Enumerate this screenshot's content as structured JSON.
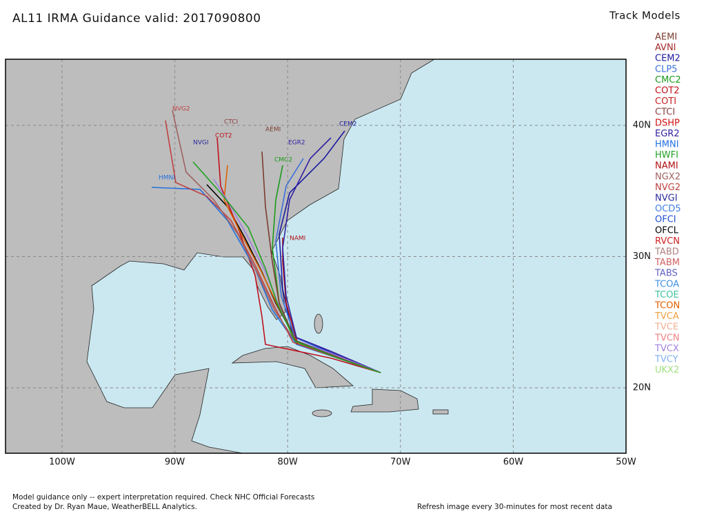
{
  "header": {
    "title": "AL11 IRMA Guidance valid: 2017090800"
  },
  "legend": {
    "title": "Track Models",
    "items": [
      {
        "name": "AEMI",
        "color": "#7a3b2e"
      },
      {
        "name": "AVNI",
        "color": "#a52a2a"
      },
      {
        "name": "CEM2",
        "color": "#1a1aa0"
      },
      {
        "name": "CLP5",
        "color": "#3a6fd8"
      },
      {
        "name": "CMC2",
        "color": "#1a9a1a"
      },
      {
        "name": "COT2",
        "color": "#c0101a"
      },
      {
        "name": "COTI",
        "color": "#c82020"
      },
      {
        "name": "CTCI",
        "color": "#8b4040"
      },
      {
        "name": "DSHP",
        "color": "#d01010"
      },
      {
        "name": "EGR2",
        "color": "#3020a0"
      },
      {
        "name": "HMNI",
        "color": "#2070e0"
      },
      {
        "name": "HWFI",
        "color": "#20a020"
      },
      {
        "name": "NAMI",
        "color": "#b01010"
      },
      {
        "name": "NGX2",
        "color": "#a06060"
      },
      {
        "name": "NVG2",
        "color": "#c04040"
      },
      {
        "name": "NVGI",
        "color": "#2a2a9a"
      },
      {
        "name": "OCD5",
        "color": "#4080e0"
      },
      {
        "name": "OFCI",
        "color": "#2050d0"
      },
      {
        "name": "OFCL",
        "color": "#000000"
      },
      {
        "name": "RVCN",
        "color": "#d02020"
      },
      {
        "name": "TABD",
        "color": "#b08080"
      },
      {
        "name": "TABM",
        "color": "#d06060"
      },
      {
        "name": "TABS",
        "color": "#6060c0"
      },
      {
        "name": "TCOA",
        "color": "#4090e0"
      },
      {
        "name": "TCOE",
        "color": "#40c0a0"
      },
      {
        "name": "TCON",
        "color": "#e06000"
      },
      {
        "name": "TVCA",
        "color": "#f0a040"
      },
      {
        "name": "TVCE",
        "color": "#f0b090"
      },
      {
        "name": "TVCN",
        "color": "#f08080"
      },
      {
        "name": "TVCX",
        "color": "#a080e0"
      },
      {
        "name": "TVCY",
        "color": "#80b0f0"
      },
      {
        "name": "UKX2",
        "color": "#a0e080"
      }
    ]
  },
  "map": {
    "lon_labels": [
      "100W",
      "90W",
      "80W",
      "70W",
      "60W",
      "50W"
    ],
    "lat_labels": [
      "40N",
      "30N",
      "20N"
    ],
    "track_labels": [
      "NAMI",
      "HMNI",
      "CEM2",
      "AEMI",
      "CTCI",
      "COT2",
      "NVG2",
      "NVGI",
      "CMC2",
      "EGR2"
    ]
  },
  "footer": {
    "line1": "Model guidance only -- expert interpretation required.  Check NHC Official Forecasts",
    "line2": "Created by Dr. Ryan Maue, WeatherBELL Analytics.",
    "refresh": "Refresh image every 30-minutes for most recent data"
  }
}
